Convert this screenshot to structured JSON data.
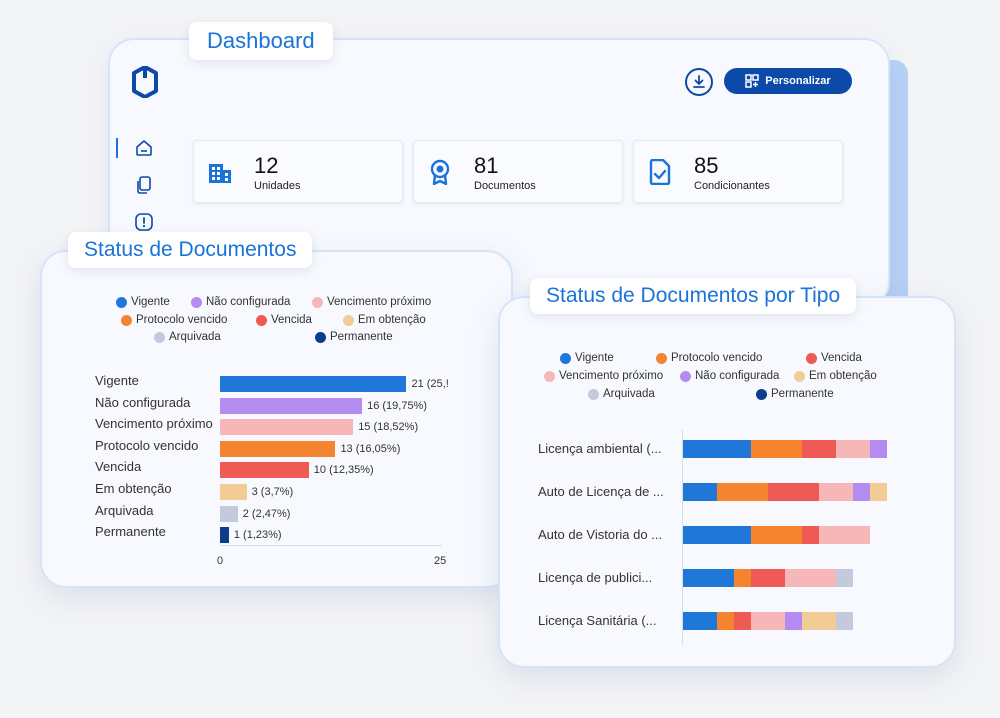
{
  "header": {
    "title": "Dashboard",
    "personalize_label": "Personalizar"
  },
  "icons": {
    "logo": "brand-logo",
    "download": "download-icon",
    "personalize": "grid-plus-icon",
    "sidebar": [
      "home-icon",
      "documents-icon",
      "alert-icon"
    ]
  },
  "stats": [
    {
      "value": "12",
      "label": "Unidades",
      "icon": "building-icon"
    },
    {
      "value": "81",
      "label": "Documentos",
      "icon": "badge-icon"
    },
    {
      "value": "85",
      "label": "Condicionantes",
      "icon": "checklist-icon"
    }
  ],
  "status_panel": {
    "title": "Status de Documentos",
    "legend": [
      "Vigente",
      "Não configurada",
      "Vencimento próximo",
      "Protocolo vencido",
      "Vencida",
      "Em obtenção",
      "Arquivada",
      "Permanente"
    ],
    "axis_ticks": [
      "0",
      "25"
    ]
  },
  "type_panel": {
    "title": "Status de Documentos por Tipo",
    "legend": [
      "Vigente",
      "Protocolo vencido",
      "Vencida",
      "Vencimento próximo",
      "Não configurada",
      "Em obtenção",
      "Arquivada",
      "Permanente"
    ]
  },
  "colors": {
    "Vigente": "#1f78d8",
    "Não configurada": "#b48bf0",
    "Vencimento próximo": "#f6b7b9",
    "Protocolo vencido": "#f4842f",
    "Vencida": "#ef5a55",
    "Em obtenção": "#f1cc95",
    "Arquivada": "#c5c9dd",
    "Permanente": "#0c3c8c",
    "accent": "#1a73d9",
    "brand": "#0b4aa8"
  },
  "chart_data": [
    {
      "type": "bar",
      "orientation": "horizontal",
      "title": "Status de Documentos",
      "categories": [
        "Vigente",
        "Não configurada",
        "Vencimento próximo",
        "Protocolo vencido",
        "Vencida",
        "Em obtenção",
        "Arquivada",
        "Permanente"
      ],
      "values": [
        21,
        16,
        15,
        13,
        10,
        3,
        2,
        1
      ],
      "data_labels": [
        "21 (25,!",
        "16 (19,75%)",
        "15 (18,52%)",
        "13 (16,05%)",
        "10 (12,35%)",
        "3 (3,7%)",
        "2 (2,47%)",
        "1 (1,23%)"
      ],
      "xlim": [
        0,
        25
      ],
      "x_ticks": [
        0,
        25
      ]
    },
    {
      "type": "bar",
      "orientation": "horizontal",
      "stacked": true,
      "title": "Status de Documentos por Tipo",
      "categories": [
        "Licença ambiental (...",
        "Auto de Licença de ...",
        "Auto de Vistoria do ...",
        "Licença de publici...",
        "Licença Sanitária (..."
      ],
      "series": [
        {
          "name": "Vigente",
          "values": [
            4,
            2,
            4,
            3,
            2
          ]
        },
        {
          "name": "Protocolo vencido",
          "values": [
            3,
            3,
            3,
            1,
            1
          ]
        },
        {
          "name": "Vencida",
          "values": [
            2,
            3,
            1,
            2,
            1
          ]
        },
        {
          "name": "Vencimento próximo",
          "values": [
            2,
            2,
            3,
            3,
            2
          ]
        },
        {
          "name": "Não configurada",
          "values": [
            1,
            1,
            0,
            0,
            1
          ]
        },
        {
          "name": "Em obtenção",
          "values": [
            0,
            1,
            0,
            0,
            2
          ]
        },
        {
          "name": "Arquivada",
          "values": [
            0,
            0,
            0,
            1,
            1
          ]
        },
        {
          "name": "Permanente",
          "values": [
            0,
            0,
            0,
            0,
            0
          ]
        }
      ]
    }
  ]
}
